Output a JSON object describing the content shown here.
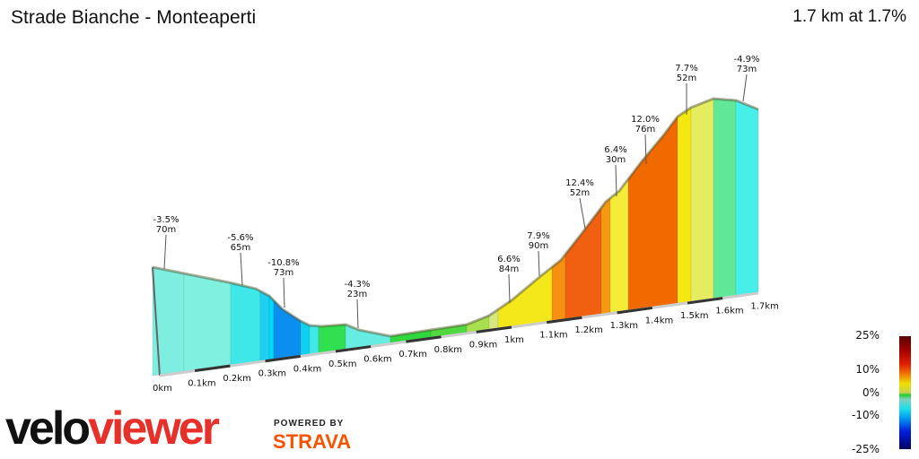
{
  "header": {
    "title": "Strade Bianche - Monteaperti",
    "summary": "1.7 km at 1.7%"
  },
  "chart_data": {
    "type": "area",
    "title": "Strade Bianche - Monteaperti",
    "x_ticks": [
      "0km",
      "0.1km",
      "0.2km",
      "0.3km",
      "0.4km",
      "0.5km",
      "0.6km",
      "0.7km",
      "0.8km",
      "0.9km",
      "1km",
      "1.1km",
      "1.2km",
      "1.3km",
      "1.4km",
      "1.5km",
      "1.6km",
      "1.7km"
    ],
    "segment_labels": [
      {
        "gradient": "-3.5%",
        "length": "70m"
      },
      {
        "gradient": "-5.6%",
        "length": "65m"
      },
      {
        "gradient": "-10.8%",
        "length": "73m"
      },
      {
        "gradient": "-4.3%",
        "length": "23m"
      },
      {
        "gradient": "6.6%",
        "length": "84m"
      },
      {
        "gradient": "7.9%",
        "length": "90m"
      },
      {
        "gradient": "12.4%",
        "length": "52m"
      },
      {
        "gradient": "6.4%",
        "length": "30m"
      },
      {
        "gradient": "12.0%",
        "length": "76m"
      },
      {
        "gradient": "7.7%",
        "length": "52m"
      },
      {
        "gradient": "-4.9%",
        "length": "73m"
      }
    ],
    "gradient_legend": [
      "25%",
      "10%",
      "0%",
      "-10%",
      "-25%"
    ]
  },
  "branding": {
    "logo_a": "velo",
    "logo_b": "viewer",
    "powered_by": "POWERED BY",
    "strava": "STRAVA"
  }
}
